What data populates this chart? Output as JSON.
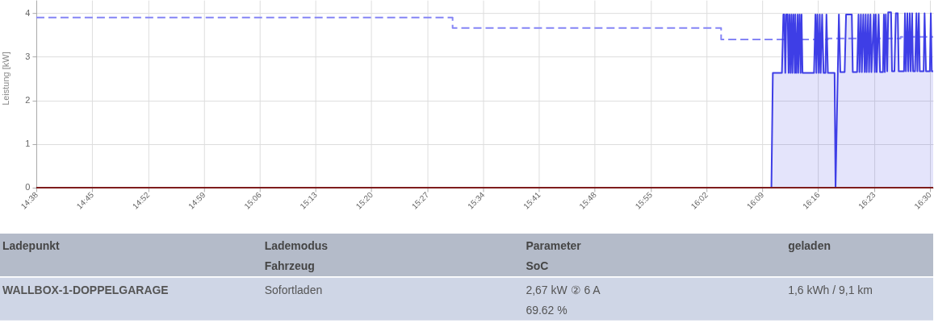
{
  "chart_data": [
    {
      "type": "line",
      "ylabel": "Leistung [kW]",
      "xlim": [
        14.6333,
        16.507
      ],
      "ylim": [
        0,
        4.3
      ],
      "xticks": [
        {
          "value": 14.6333,
          "label": "14:38"
        },
        {
          "value": 14.75,
          "label": "14:45"
        },
        {
          "value": 14.8667,
          "label": "14:52"
        },
        {
          "value": 14.9833,
          "label": "14:59"
        },
        {
          "value": 15.1,
          "label": "15:06"
        },
        {
          "value": 15.2167,
          "label": "15:13"
        },
        {
          "value": 15.3333,
          "label": "15:20"
        },
        {
          "value": 15.45,
          "label": "15:27"
        },
        {
          "value": 15.5667,
          "label": "15:34"
        },
        {
          "value": 15.6833,
          "label": "15:41"
        },
        {
          "value": 15.8,
          "label": "15:48"
        },
        {
          "value": 15.9167,
          "label": "15:55"
        },
        {
          "value": 16.0333,
          "label": "16:02"
        },
        {
          "value": 16.15,
          "label": "16:09"
        },
        {
          "value": 16.2667,
          "label": "16:16"
        },
        {
          "value": 16.3833,
          "label": "16:23"
        },
        {
          "value": 16.5,
          "label": "16:30"
        }
      ],
      "yticks": [
        0,
        1,
        2,
        3,
        4
      ],
      "grid": true,
      "series": [
        {
          "type": "step",
          "line_style": "dashed",
          "color": "#8585f5",
          "x": [
            14.6333,
            15.503,
            16.064,
            16.287,
            16.439,
            16.507
          ],
          "values": [
            3.9,
            3.66,
            3.4,
            3.42,
            3.46,
            3.46
          ]
        },
        {
          "type": "area",
          "color": "#3e3ee6",
          "x": [
            14.6333,
            16.169,
            16.172,
            16.191,
            16.194,
            16.196,
            16.198,
            16.2,
            16.203,
            16.205,
            16.207,
            16.209,
            16.211,
            16.213,
            16.215,
            16.218,
            16.219,
            16.221,
            16.224,
            16.225,
            16.228,
            16.23,
            16.232,
            16.234,
            16.258,
            16.261,
            16.263,
            16.265,
            16.268,
            16.27,
            16.272,
            16.275,
            16.278,
            16.282,
            16.284,
            16.287,
            16.301,
            16.303,
            16.31,
            16.313,
            16.322,
            16.325,
            16.337,
            16.339,
            16.348,
            16.351,
            16.353,
            16.356,
            16.358,
            16.361,
            16.364,
            16.366,
            16.368,
            16.371,
            16.373,
            16.376,
            16.378,
            16.383,
            16.385,
            16.387,
            16.389,
            16.393,
            16.396,
            16.402,
            16.404,
            16.406,
            16.408,
            16.411,
            16.413,
            16.419,
            16.421,
            16.426,
            16.429,
            16.433,
            16.435,
            16.446,
            16.448,
            16.45,
            16.453,
            16.455,
            16.458,
            16.46,
            16.463,
            16.465,
            16.469,
            16.472,
            16.474,
            16.477,
            16.479,
            16.487,
            16.489,
            16.492,
            16.5,
            16.502,
            16.504,
            16.507
          ],
          "values": [
            0,
            0,
            2.63,
            2.63,
            3.97,
            3.97,
            2.63,
            3.97,
            3.97,
            2.63,
            3.97,
            2.63,
            3.97,
            2.63,
            3.97,
            2.63,
            3.97,
            2.63,
            3.97,
            2.63,
            3.97,
            2.63,
            3.97,
            2.63,
            2.63,
            3.97,
            2.63,
            3.97,
            2.63,
            3.97,
            2.63,
            3.97,
            2.63,
            2.63,
            3.97,
            2.63,
            2.63,
            0,
            3.97,
            2.65,
            2.65,
            3.97,
            3.97,
            2.65,
            2.65,
            3.97,
            2.65,
            3.97,
            2.65,
            3.97,
            2.65,
            3.97,
            2.65,
            3.97,
            2.65,
            3.97,
            2.65,
            3.97,
            2.65,
            3.97,
            2.65,
            3.97,
            2.65,
            2.65,
            3.97,
            2.65,
            3.97,
            2.67,
            4.02,
            4.02,
            2.67,
            2.67,
            4.0,
            4.0,
            2.67,
            2.67,
            4.0,
            2.67,
            4.0,
            2.67,
            4.0,
            2.67,
            4.0,
            2.67,
            2.67,
            4.0,
            2.67,
            4.0,
            2.67,
            2.67,
            4.0,
            2.67,
            2.67,
            4.0,
            2.67,
            2.67
          ]
        },
        {
          "type": "line",
          "color": "#7f1d1d",
          "x": [
            14.6333,
            16.507
          ],
          "values": [
            0,
            0
          ]
        }
      ]
    },
    {
      "type": "other",
      "annotations": [
        "Ladepunkt",
        "Lademodus",
        "Fahrzeug",
        "Parameter",
        "SoC",
        "geladen",
        "WALLBOX-1-DOPPELGARAGE",
        "Sofortladen",
        "2,67 kW ② 6 A",
        "69.62 %",
        "1,6 kWh / 9,1 km"
      ]
    }
  ]
}
